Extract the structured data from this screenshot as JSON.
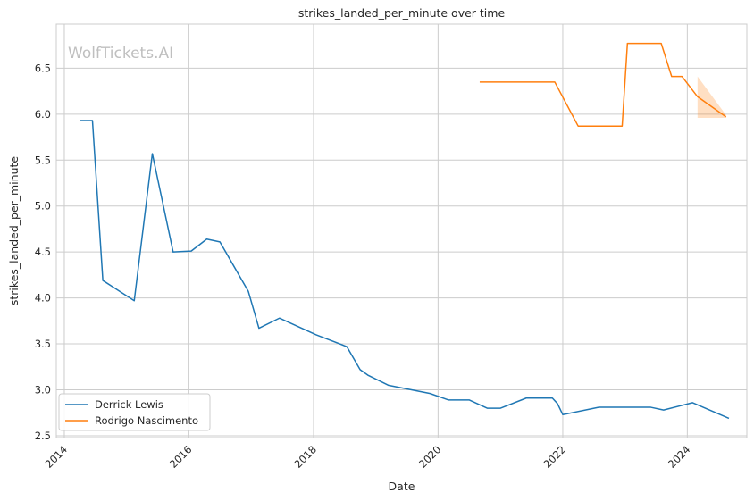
{
  "chart_data": {
    "type": "line",
    "title": "strikes_landed_per_minute over time",
    "xlabel": "Date",
    "ylabel": "strikes_landed_per_minute",
    "watermark": "WolfTickets.AI",
    "x_ticks": [
      "2014",
      "2016",
      "2018",
      "2020",
      "2022",
      "2024"
    ],
    "y_ticks": [
      "2.5",
      "3.0",
      "3.5",
      "4.0",
      "4.5",
      "5.0",
      "5.5",
      "6.0",
      "6.5"
    ],
    "xlim": [
      "2013-11-15",
      "2024-12-15"
    ],
    "ylim": [
      2.48,
      6.98
    ],
    "grid": true,
    "legend_position": "lower-left",
    "series": [
      {
        "name": "Derrick Lewis",
        "color": "#1f77b4",
        "points": [
          [
            "2014-04-01",
            5.93
          ],
          [
            "2014-06-15",
            5.93
          ],
          [
            "2014-08-15",
            4.19
          ],
          [
            "2015-02-15",
            3.97
          ],
          [
            "2015-06-01",
            5.57
          ],
          [
            "2015-10-01",
            4.5
          ],
          [
            "2016-01-15",
            4.51
          ],
          [
            "2016-04-15",
            4.64
          ],
          [
            "2016-07-01",
            4.61
          ],
          [
            "2016-12-15",
            4.07
          ],
          [
            "2017-02-15",
            3.67
          ],
          [
            "2017-06-15",
            3.78
          ],
          [
            "2018-01-15",
            3.6
          ],
          [
            "2018-07-15",
            3.47
          ],
          [
            "2018-10-01",
            3.22
          ],
          [
            "2018-11-15",
            3.16
          ],
          [
            "2019-03-15",
            3.05
          ],
          [
            "2019-11-15",
            2.96
          ],
          [
            "2020-03-01",
            2.89
          ],
          [
            "2020-07-01",
            2.89
          ],
          [
            "2020-10-15",
            2.8
          ],
          [
            "2021-01-01",
            2.8
          ],
          [
            "2021-06-01",
            2.91
          ],
          [
            "2021-11-01",
            2.91
          ],
          [
            "2021-12-01",
            2.85
          ],
          [
            "2022-01-01",
            2.73
          ],
          [
            "2022-08-01",
            2.81
          ],
          [
            "2023-01-15",
            2.81
          ],
          [
            "2023-06-01",
            2.81
          ],
          [
            "2023-08-15",
            2.78
          ],
          [
            "2024-02-01",
            2.86
          ],
          [
            "2024-09-01",
            2.69
          ]
        ]
      },
      {
        "name": "Rodrigo Nascimento",
        "color": "#ff7f0e",
        "points": [
          [
            "2020-09-01",
            6.35
          ],
          [
            "2021-01-15",
            6.35
          ],
          [
            "2021-11-15",
            6.35
          ],
          [
            "2022-04-01",
            5.87
          ],
          [
            "2022-08-15",
            5.87
          ],
          [
            "2022-12-15",
            5.87
          ],
          [
            "2023-01-15",
            6.77
          ],
          [
            "2023-08-01",
            6.77
          ],
          [
            "2023-10-01",
            6.41
          ],
          [
            "2023-12-01",
            6.41
          ],
          [
            "2024-03-01",
            6.19
          ],
          [
            "2024-08-15",
            5.97
          ]
        ],
        "band": {
          "x": [
            "2024-03-01",
            "2024-08-15"
          ],
          "upper": [
            6.41,
            5.99
          ],
          "lower": [
            5.96,
            5.96
          ]
        }
      }
    ]
  }
}
